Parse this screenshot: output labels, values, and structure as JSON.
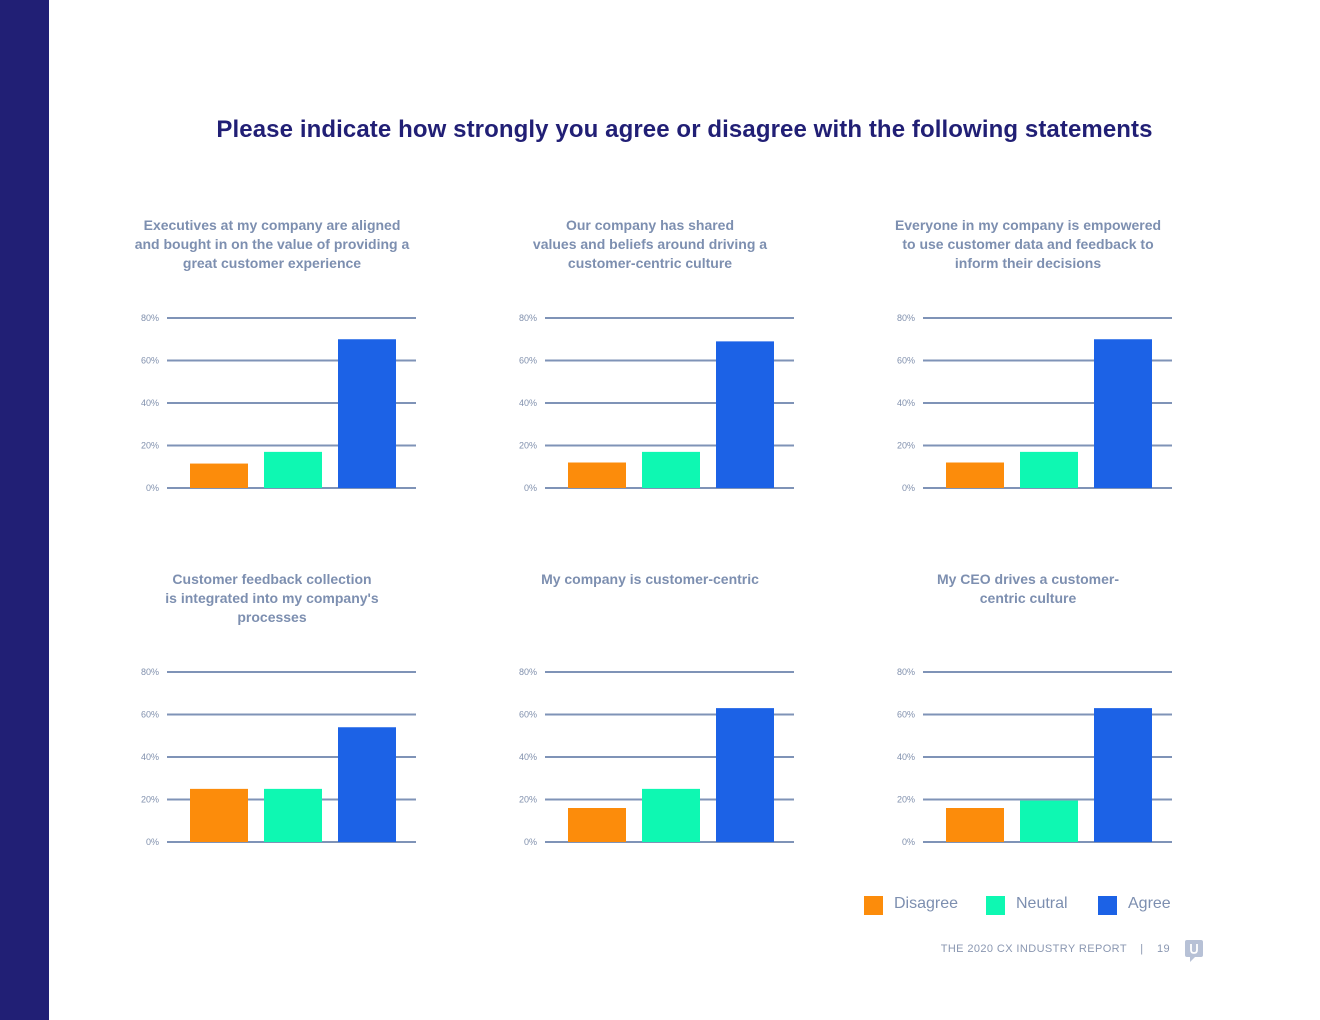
{
  "report": {
    "title": "Please indicate how strongly you agree or disagree with the following statements",
    "footer_label": "THE 2020 CX INDUSTRY REPORT",
    "footer_sep": "|",
    "page_number": "19"
  },
  "colors": {
    "sidebar": "#211f75",
    "disagree": "#fc8c0b",
    "neutral": "#0ef8b2",
    "agree": "#1c62e6",
    "gridline": "#7f93b7",
    "title_text": "#211f75",
    "label_text": "#7d8fb0"
  },
  "legend": [
    {
      "key": "disagree",
      "label": "Disagree",
      "color": "#fc8c0b"
    },
    {
      "key": "neutral",
      "label": "Neutral",
      "color": "#0ef8b2"
    },
    {
      "key": "agree",
      "label": "Agree",
      "color": "#1c62e6"
    }
  ],
  "chart_data": [
    {
      "type": "bar",
      "title": "Executives at my company are aligned\nand bought in on the value of providing a\ngreat customer experience",
      "categories": [
        "Disagree",
        "Neutral",
        "Agree"
      ],
      "values": [
        11.5,
        17,
        70
      ],
      "yticks": [
        "0%",
        "20%",
        "40%",
        "60%",
        "80%"
      ],
      "ylim": [
        0,
        80
      ],
      "xlabel": "",
      "ylabel": ""
    },
    {
      "type": "bar",
      "title": "Our company has shared\nvalues and beliefs around driving a\ncustomer-centric culture",
      "categories": [
        "Disagree",
        "Neutral",
        "Agree"
      ],
      "values": [
        12,
        17,
        69
      ],
      "yticks": [
        "0%",
        "20%",
        "40%",
        "60%",
        "80%"
      ],
      "ylim": [
        0,
        80
      ],
      "xlabel": "",
      "ylabel": ""
    },
    {
      "type": "bar",
      "title": "Everyone in my company is empowered\nto use customer data and feedback to\ninform their decisions",
      "categories": [
        "Disagree",
        "Neutral",
        "Agree"
      ],
      "values": [
        12,
        17,
        70
      ],
      "yticks": [
        "0%",
        "20%",
        "40%",
        "60%",
        "80%"
      ],
      "ylim": [
        0,
        80
      ],
      "xlabel": "",
      "ylabel": ""
    },
    {
      "type": "bar",
      "title": "Customer feedback collection\nis integrated into my company's\nprocesses",
      "categories": [
        "Disagree",
        "Neutral",
        "Agree"
      ],
      "values": [
        25,
        25,
        54
      ],
      "yticks": [
        "0%",
        "20%",
        "40%",
        "60%",
        "80%"
      ],
      "ylim": [
        0,
        80
      ],
      "xlabel": "",
      "ylabel": ""
    },
    {
      "type": "bar",
      "title": "My company is customer-centric",
      "categories": [
        "Disagree",
        "Neutral",
        "Agree"
      ],
      "values": [
        16,
        25,
        63
      ],
      "yticks": [
        "0%",
        "20%",
        "40%",
        "60%",
        "80%"
      ],
      "ylim": [
        0,
        80
      ],
      "xlabel": "",
      "ylabel": ""
    },
    {
      "type": "bar",
      "title": "My CEO drives a customer-\ncentric culture",
      "categories": [
        "Disagree",
        "Neutral",
        "Agree"
      ],
      "values": [
        16,
        19.5,
        63
      ],
      "yticks": [
        "0%",
        "20%",
        "40%",
        "60%",
        "80%"
      ],
      "ylim": [
        0,
        80
      ],
      "xlabel": "",
      "ylabel": ""
    }
  ]
}
